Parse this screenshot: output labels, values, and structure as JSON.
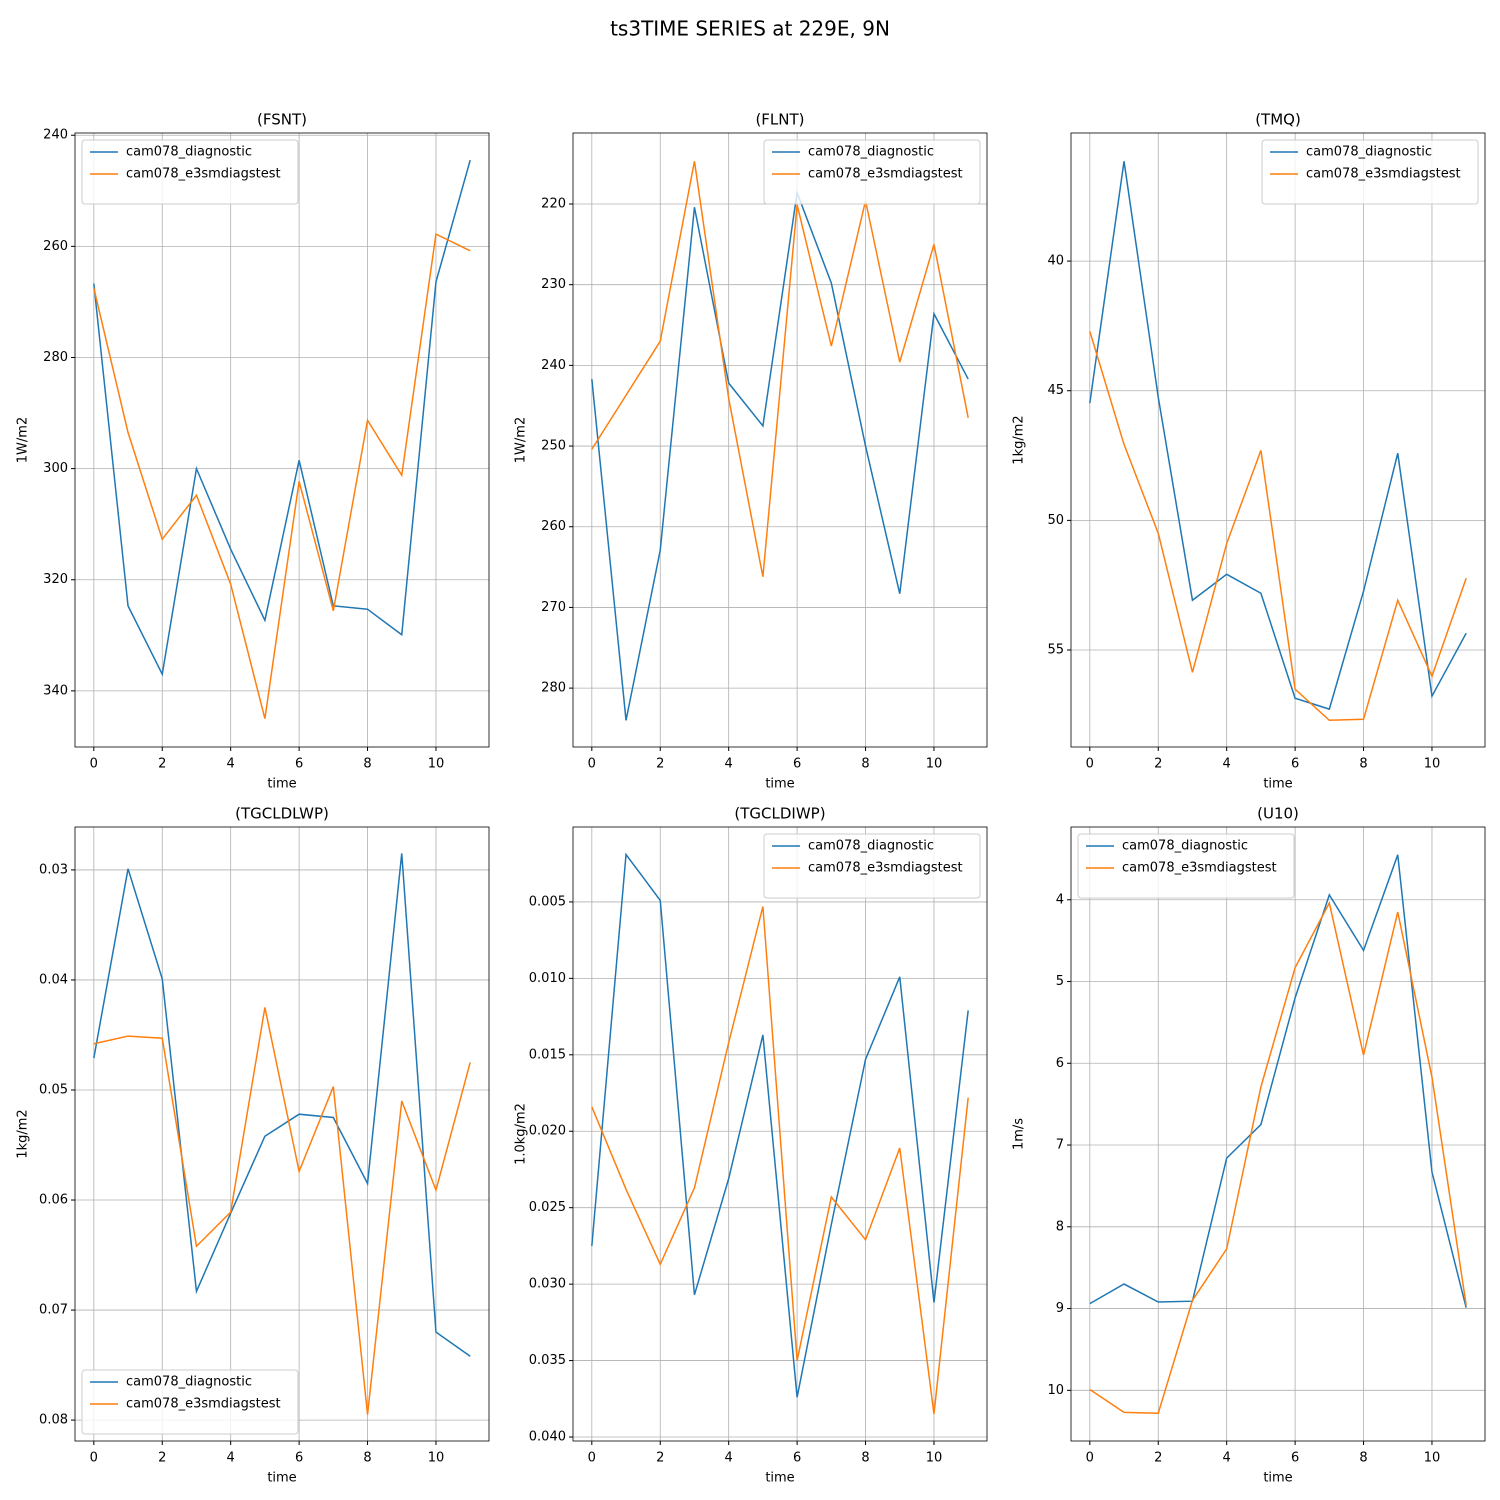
{
  "title": "ts3TIME SERIES at 229E, 9N",
  "chart_data": [
    {
      "type": "line",
      "title": "(FSNT)",
      "xlabel": "time",
      "ylabel": "1W/m2",
      "x": [
        0,
        1,
        2,
        3,
        4,
        5,
        6,
        7,
        8,
        9,
        10,
        11
      ],
      "xlim": [
        -0.55,
        11.55
      ],
      "xticks": [
        0,
        2,
        4,
        6,
        8,
        10
      ],
      "ylim": [
        350.1,
        239.6
      ],
      "yticks": [
        240,
        260,
        280,
        300,
        320,
        340
      ],
      "grid": true,
      "legend": "upper left",
      "series": [
        {
          "name": "cam078_diagnostic",
          "color": "#1f77b4",
          "values": [
            266.7,
            324.7,
            337,
            300,
            314.5,
            327.3,
            298.5,
            324.7,
            325.3,
            329.9,
            266.4,
            244.5
          ]
        },
        {
          "name": "cam078_e3smdiagstest",
          "color": "#ff7f0e",
          "values": [
            267.5,
            293.5,
            312.7,
            304.8,
            320.8,
            345,
            302.3,
            325.6,
            291.3,
            301.2,
            257.8,
            260.8
          ]
        }
      ]
    },
    {
      "type": "line",
      "title": "(FLNT)",
      "xlabel": "time",
      "ylabel": "1W/m2",
      "x": [
        0,
        1,
        2,
        3,
        4,
        5,
        6,
        7,
        8,
        9,
        10,
        11
      ],
      "xlim": [
        -0.55,
        11.55
      ],
      "xticks": [
        0,
        2,
        4,
        6,
        8,
        10
      ],
      "ylim": [
        287.3,
        211.2
      ],
      "yticks": [
        220,
        230,
        240,
        250,
        260,
        270,
        280
      ],
      "grid": true,
      "legend": "upper right",
      "series": [
        {
          "name": "cam078_diagnostic",
          "color": "#1f77b4",
          "values": [
            241.7,
            284,
            262.9,
            220.4,
            242.2,
            247.5,
            218.6,
            229.8,
            250,
            268.3,
            233.6,
            241.7
          ]
        },
        {
          "name": "cam078_e3smdiagstest",
          "color": "#ff7f0e",
          "values": [
            250.4,
            243.7,
            237,
            214.7,
            244.1,
            266.2,
            220.1,
            237.6,
            219.6,
            239.6,
            225,
            246.5
          ]
        }
      ]
    },
    {
      "type": "line",
      "title": "(TMQ)",
      "xlabel": "time",
      "ylabel": "1kg/m2",
      "x": [
        0,
        1,
        2,
        3,
        4,
        5,
        6,
        7,
        8,
        9,
        10,
        11
      ],
      "xlim": [
        -0.55,
        11.55
      ],
      "xticks": [
        0,
        2,
        4,
        6,
        8,
        10
      ],
      "ylim": [
        58.74,
        35.06
      ],
      "yticks": [
        40,
        45,
        50,
        55
      ],
      "grid": true,
      "legend": "upper right",
      "series": [
        {
          "name": "cam078_diagnostic",
          "color": "#1f77b4",
          "values": [
            45.48,
            36.15,
            45.25,
            53.08,
            52.08,
            52.81,
            56.86,
            57.28,
            52.73,
            47.41,
            56.78,
            54.35
          ]
        },
        {
          "name": "cam078_e3smdiagstest",
          "color": "#ff7f0e",
          "values": [
            42.71,
            47.07,
            50.5,
            55.86,
            50.89,
            47.3,
            56.51,
            57.71,
            57.67,
            53.08,
            56.01,
            52.23
          ]
        }
      ]
    },
    {
      "type": "line",
      "title": "(TGCLDLWP)",
      "xlabel": "time",
      "ylabel": "1kg/m2",
      "x": [
        0,
        1,
        2,
        3,
        4,
        5,
        6,
        7,
        8,
        9,
        10,
        11
      ],
      "xlim": [
        -0.55,
        11.55
      ],
      "xticks": [
        0,
        2,
        4,
        6,
        8,
        10
      ],
      "ylim": [
        0.0819,
        0.0261
      ],
      "yticks": [
        0.03,
        0.04,
        0.05,
        0.06,
        0.07,
        0.08
      ],
      "grid": true,
      "legend": "lower left",
      "series": [
        {
          "name": "cam078_diagnostic",
          "color": "#1f77b4",
          "values": [
            0.0471,
            0.0299,
            0.0399,
            0.0683,
            0.0612,
            0.0542,
            0.0522,
            0.0525,
            0.0585,
            0.0285,
            0.072,
            0.0742
          ]
        },
        {
          "name": "cam078_e3smdiagstest",
          "color": "#ff7f0e",
          "values": [
            0.0458,
            0.0451,
            0.0453,
            0.0642,
            0.0611,
            0.0425,
            0.0574,
            0.0497,
            0.0795,
            0.051,
            0.0591,
            0.0475
          ]
        }
      ]
    },
    {
      "type": "line",
      "title": "(TGCLDIWP)",
      "xlabel": "time",
      "ylabel": "1.0kg/m2",
      "x": [
        0,
        1,
        2,
        3,
        4,
        5,
        6,
        7,
        8,
        9,
        10,
        11
      ],
      "xlim": [
        -0.55,
        11.55
      ],
      "xticks": [
        0,
        2,
        4,
        6,
        8,
        10
      ],
      "ylim": [
        0.04026,
        0.0001
      ],
      "yticks": [
        0.005,
        {
          "value": 0.01,
          "label": "0.010"
        },
        0.015,
        {
          "value": 0.02,
          "label": "0.020"
        },
        0.025,
        {
          "value": 0.03,
          "label": "0.030"
        },
        0.035,
        {
          "value": 0.04,
          "label": "0.040"
        }
      ],
      "grid": true,
      "legend": "upper right",
      "series": [
        {
          "name": "cam078_diagnostic",
          "color": "#1f77b4",
          "values": [
            0.0275,
            0.0019,
            0.0049,
            0.0307,
            0.0231,
            0.0137,
            0.0374,
            0.0261,
            0.0153,
            0.0099,
            0.0312,
            0.0121
          ]
        },
        {
          "name": "cam078_e3smdiagstest",
          "color": "#ff7f0e",
          "values": [
            0.0184,
            0.0238,
            0.0287,
            0.0237,
            0.0142,
            0.0053,
            0.035,
            0.0243,
            0.0271,
            0.0211,
            0.0385,
            0.0178
          ]
        }
      ]
    },
    {
      "type": "line",
      "title": "(U10)",
      "xlabel": "time",
      "ylabel": "1m/s",
      "x": [
        0,
        1,
        2,
        3,
        4,
        5,
        6,
        7,
        8,
        9,
        10,
        11
      ],
      "xlim": [
        -0.55,
        11.55
      ],
      "xticks": [
        0,
        2,
        4,
        6,
        8,
        10
      ],
      "ylim": [
        10.62,
        3.11
      ],
      "yticks": [
        4,
        5,
        6,
        7,
        8,
        9,
        10
      ],
      "grid": true,
      "legend": "upper left",
      "series": [
        {
          "name": "cam078_diagnostic",
          "color": "#1f77b4",
          "values": [
            8.94,
            8.7,
            8.92,
            8.91,
            7.16,
            6.75,
            5.2,
            3.94,
            4.62,
            3.45,
            7.33,
            8.99
          ]
        },
        {
          "name": "cam078_e3smdiagstest",
          "color": "#ff7f0e",
          "values": [
            9.99,
            10.27,
            10.28,
            8.9,
            8.27,
            6.29,
            4.83,
            4.04,
            5.9,
            4.15,
            6.17,
            8.96
          ]
        }
      ]
    }
  ]
}
